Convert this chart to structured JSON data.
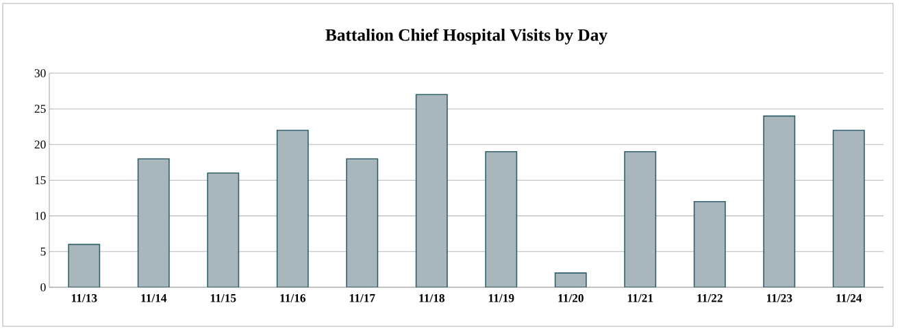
{
  "chart_data": {
    "type": "bar",
    "title": "Battalion Chief Hospital Visits by Day",
    "categories": [
      "11/13",
      "11/14",
      "11/15",
      "11/16",
      "11/17",
      "11/18",
      "11/19",
      "11/20",
      "11/21",
      "11/22",
      "11/23",
      "11/24"
    ],
    "values": [
      6,
      18,
      16,
      22,
      18,
      27,
      19,
      2,
      19,
      12,
      24,
      22
    ],
    "color": "#a9b6bc",
    "ylim": [
      0,
      30
    ],
    "yticks": [
      0,
      5,
      10,
      15,
      20,
      25,
      30
    ],
    "grid": "y"
  }
}
